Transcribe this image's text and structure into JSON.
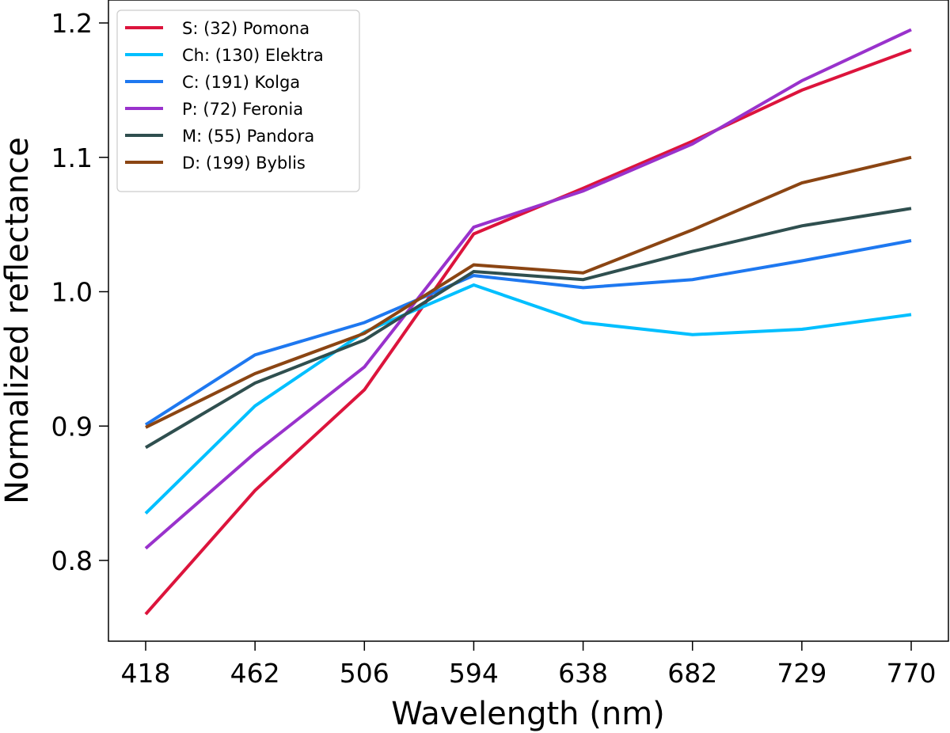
{
  "chart_data": {
    "type": "line",
    "title": "",
    "xlabel": "Wavelength (nm)",
    "ylabel": "Normalized reflectance",
    "categories": [
      "418",
      "462",
      "506",
      "594",
      "638",
      "682",
      "729",
      "770"
    ],
    "ylim": [
      0.74,
      1.21
    ],
    "yticks": [
      {
        "value": 0.8,
        "label": "0.8"
      },
      {
        "value": 0.9,
        "label": "0.9"
      },
      {
        "value": 1.0,
        "label": "1.0"
      },
      {
        "value": 1.1,
        "label": "1.1"
      },
      {
        "value": 1.2,
        "label": "1.2"
      }
    ],
    "grid": false,
    "legend_position": "top-left",
    "series": [
      {
        "name": "S: (32) Pomona",
        "color": "#dc143c",
        "values": [
          0.76,
          0.852,
          0.927,
          1.043,
          1.077,
          1.112,
          1.15,
          1.18
        ]
      },
      {
        "name": "Ch: (130) Elektra",
        "color": "#00bfff",
        "values": [
          0.835,
          0.915,
          0.97,
          1.005,
          0.977,
          0.968,
          0.972,
          0.983
        ]
      },
      {
        "name": "C: (191) Kolga",
        "color": "#1e78f0",
        "values": [
          0.901,
          0.953,
          0.977,
          1.012,
          1.003,
          1.009,
          1.023,
          1.038
        ]
      },
      {
        "name": "P: (72) Feronia",
        "color": "#9932cc",
        "values": [
          0.809,
          0.88,
          0.944,
          1.048,
          1.075,
          1.11,
          1.157,
          1.195
        ]
      },
      {
        "name": "M: (55) Pandora",
        "color": "#2f4f4f",
        "values": [
          0.884,
          0.932,
          0.964,
          1.015,
          1.009,
          1.03,
          1.049,
          1.062
        ]
      },
      {
        "name": "D: (199) Byblis",
        "color": "#8b4513",
        "values": [
          0.899,
          0.939,
          0.969,
          1.02,
          1.014,
          1.046,
          1.081,
          1.1
        ]
      }
    ]
  }
}
